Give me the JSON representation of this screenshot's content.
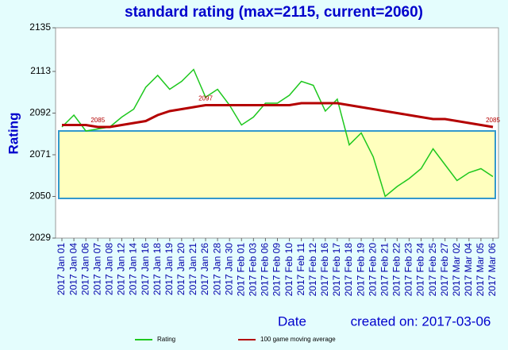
{
  "chart_data": {
    "type": "line",
    "title": "standard rating (max=2115, current=2060)",
    "y_label": "Rating",
    "x_label": "Date",
    "note": "created on: 2017-03-06",
    "categories": [
      "2017 Jan 01",
      "2017 Jan 04",
      "2017 Jan 06",
      "2017 Jan 07",
      "2017 Jan 08",
      "2017 Jan 12",
      "2017 Jan 14",
      "2017 Jan 16",
      "2017 Jan 18",
      "2017 Jan 19",
      "2017 Jan 20",
      "2017 Jan 21",
      "2017 Jan 26",
      "2017 Jan 28",
      "2017 Jan 30",
      "2017 Feb 01",
      "2017 Feb 03",
      "2017 Feb 06",
      "2017 Feb 09",
      "2017 Feb 10",
      "2017 Feb 11",
      "2017 Feb 12",
      "2017 Feb 16",
      "2017 Feb 17",
      "2017 Feb 18",
      "2017 Feb 19",
      "2017 Feb 20",
      "2017 Feb 21",
      "2017 Feb 22",
      "2017 Feb 23",
      "2017 Feb 24",
      "2017 Feb 25",
      "2017 Feb 27",
      "2017 Mar 02",
      "2017 Mar 04",
      "2017 Mar 05",
      "2017 Mar 06"
    ],
    "series": [
      {
        "name": "Rating",
        "color": "#1ec81e",
        "values": [
          2085,
          2091,
          2083,
          2084,
          2085,
          2090,
          2094,
          2105,
          2111,
          2104,
          2108,
          2114,
          2100,
          2104,
          2096,
          2086,
          2090,
          2097,
          2097,
          2101,
          2108,
          2106,
          2093,
          2099,
          2076,
          2082,
          2070,
          2050,
          2055,
          2059,
          2064,
          2074,
          2066,
          2058,
          2062,
          2064,
          2060
        ]
      },
      {
        "name": "100 game moving average",
        "color": "#b40000",
        "values": [
          2086,
          2086,
          2086,
          2085,
          2085,
          2086,
          2087,
          2088,
          2091,
          2093,
          2094,
          2095,
          2096,
          2096,
          2096,
          2096,
          2096,
          2096,
          2096,
          2096,
          2097,
          2097,
          2097,
          2097,
          2096,
          2095,
          2094,
          2093,
          2092,
          2091,
          2090,
          2089,
          2089,
          2088,
          2087,
          2086,
          2085
        ]
      }
    ],
    "annotations": [
      {
        "text": "2085",
        "index": 3
      },
      {
        "text": "2097",
        "index": 12
      },
      {
        "text": "2085",
        "index": 36
      }
    ],
    "band": [
      2049,
      2083
    ],
    "band_color": "#ffffbe",
    "band_edge": "#3399cc",
    "ylim": [
      2029,
      2135
    ],
    "yticks": [
      2029,
      2050,
      2071,
      2092,
      2113,
      2135
    ]
  }
}
